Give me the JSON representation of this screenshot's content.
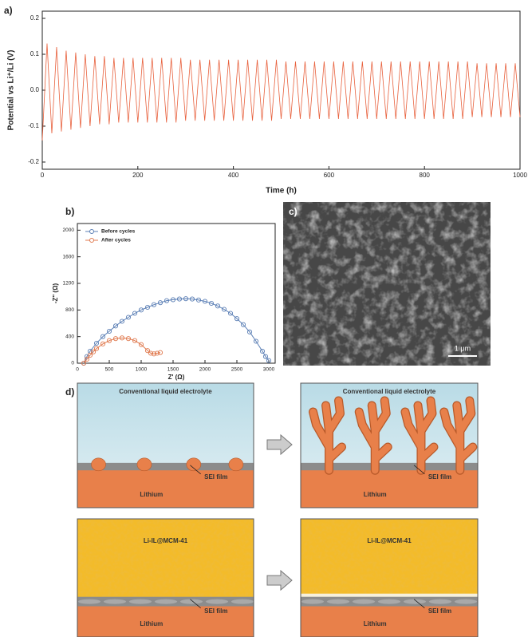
{
  "chart_data": [
    {
      "type": "line",
      "label": "a)",
      "xlabel": "Time (h)",
      "ylabel": "Potential vs Li⁺/Li (V)",
      "x": [
        0,
        10,
        20,
        30,
        40,
        50,
        60,
        70,
        80,
        90,
        100,
        110,
        120,
        130,
        140,
        150,
        160,
        170,
        180,
        190,
        200,
        210,
        220,
        230,
        240,
        250,
        260,
        270,
        280,
        290,
        300,
        310,
        320,
        330,
        340,
        350,
        360,
        370,
        380,
        390,
        400,
        410,
        420,
        430,
        440,
        450,
        460,
        470,
        480,
        490,
        500,
        510,
        520,
        530,
        540,
        550,
        560,
        570,
        580,
        590,
        600,
        610,
        620,
        630,
        640,
        650,
        660,
        670,
        680,
        690,
        700,
        710,
        720,
        730,
        740,
        750,
        760,
        770,
        780,
        790,
        800,
        810,
        820,
        830,
        840,
        850,
        860,
        870,
        880,
        890,
        900,
        910,
        920,
        930,
        940,
        950,
        960,
        970,
        980,
        990,
        1000
      ],
      "series": [
        {
          "color": "#e8603c",
          "values": [
            -0.14,
            0.13,
            -0.12,
            0.12,
            -0.115,
            0.11,
            -0.11,
            0.105,
            -0.105,
            0.1,
            -0.1,
            0.095,
            -0.095,
            0.095,
            -0.095,
            0.09,
            -0.09,
            0.09,
            -0.09,
            0.09,
            -0.09,
            0.09,
            -0.09,
            0.09,
            -0.09,
            0.09,
            -0.09,
            0.09,
            -0.09,
            0.09,
            -0.085,
            0.085,
            -0.085,
            0.085,
            -0.085,
            0.085,
            -0.085,
            0.085,
            -0.085,
            0.085,
            -0.085,
            0.085,
            -0.085,
            0.085,
            -0.085,
            0.085,
            -0.085,
            0.085,
            -0.085,
            0.085,
            -0.08,
            0.08,
            -0.08,
            0.08,
            -0.08,
            0.08,
            -0.08,
            0.08,
            -0.08,
            0.08,
            -0.08,
            0.08,
            -0.08,
            0.08,
            -0.08,
            0.08,
            -0.08,
            0.08,
            -0.08,
            0.08,
            -0.08,
            0.08,
            -0.08,
            0.08,
            -0.08,
            0.08,
            -0.08,
            0.08,
            -0.08,
            0.08,
            -0.08,
            0.08,
            -0.08,
            0.08,
            -0.08,
            0.08,
            -0.08,
            0.08,
            -0.08,
            0.08,
            -0.075,
            0.075,
            -0.075,
            0.075,
            -0.075,
            0.075,
            -0.075,
            0.075,
            -0.075,
            0.075,
            -0.075
          ]
        }
      ],
      "xlim": [
        0,
        1000
      ],
      "ylim": [
        -0.22,
        0.22
      ],
      "xticks": [
        0,
        200,
        400,
        600,
        800,
        1000
      ],
      "yticks": [
        -0.2,
        -0.1,
        {
          "value": 0,
          "label": "0.0"
        },
        0.1,
        0.2
      ],
      "markers": false
    },
    {
      "type": "line",
      "label": "b)",
      "xlabel": "Z' (Ω)",
      "ylabel": "-Z'' (Ω)",
      "series": [
        {
          "name": "Before cycles",
          "color": "#5b7fb5",
          "x": [
            100,
            150,
            200,
            300,
            400,
            500,
            600,
            700,
            800,
            900,
            1000,
            1100,
            1200,
            1300,
            1400,
            1500,
            1600,
            1700,
            1800,
            1900,
            2000,
            2100,
            2200,
            2300,
            2400,
            2500,
            2600,
            2700,
            2800,
            2900,
            2950,
            3000
          ],
          "values": [
            0,
            100,
            180,
            300,
            400,
            480,
            560,
            630,
            690,
            750,
            800,
            840,
            880,
            910,
            940,
            955,
            965,
            970,
            965,
            950,
            930,
            900,
            860,
            810,
            750,
            670,
            580,
            470,
            330,
            180,
            100,
            40
          ]
        },
        {
          "name": "After cycles",
          "color": "#e07a4f",
          "x": [
            100,
            150,
            200,
            250,
            300,
            400,
            500,
            600,
            700,
            800,
            900,
            1000,
            1100,
            1150,
            1200,
            1250,
            1300
          ],
          "values": [
            0,
            60,
            120,
            170,
            220,
            290,
            340,
            370,
            380,
            370,
            340,
            280,
            190,
            150,
            140,
            150,
            160
          ]
        }
      ],
      "xlim": [
        0,
        3100
      ],
      "ylim": [
        0,
        2100
      ],
      "xticks": [
        0,
        500,
        1000,
        1500,
        2000,
        2500,
        3000
      ],
      "yticks": [
        0,
        400,
        800,
        1200,
        1600,
        2000
      ],
      "markers": true,
      "legend": "upper left"
    }
  ],
  "sem": {
    "label": "c)",
    "scale_bar": "1 μm"
  },
  "diagram": {
    "label": "d)",
    "panels": [
      {
        "electrolyte": "Conventional liquid electrolyte",
        "anode": "Lithium",
        "interphase": "SEI film"
      },
      {
        "electrolyte": "Conventional liquid electrolyte",
        "anode": "Lithium",
        "interphase": "SEI film"
      },
      {
        "electrolyte": "Li-IL@MCM-41",
        "anode": "Lithium",
        "interphase": "SEI film"
      },
      {
        "electrolyte": "Li-IL@MCM-41",
        "anode": "Lithium",
        "interphase": "SEI film"
      }
    ]
  }
}
